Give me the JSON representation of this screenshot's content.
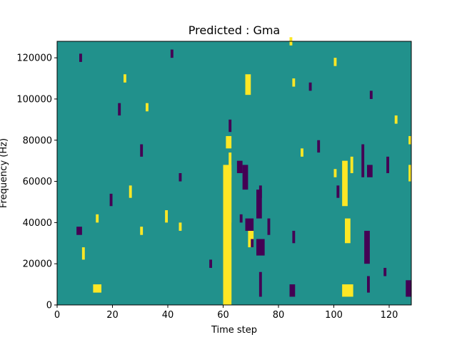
{
  "chart_data": {
    "type": "heatmap",
    "title": "Predicted : Gma",
    "xlabel": "Time step",
    "ylabel": "Frequency (Hz)",
    "xlim": [
      0,
      128
    ],
    "ylim": [
      0,
      128000
    ],
    "x_ticks": [
      0,
      20,
      40,
      60,
      80,
      100,
      120
    ],
    "x_tick_labels": [
      "0",
      "20",
      "40",
      "60",
      "80",
      "100",
      "120"
    ],
    "y_ticks": [
      0,
      20000,
      40000,
      60000,
      80000,
      100000,
      120000
    ],
    "y_tick_labels": [
      "0",
      "20000",
      "40000",
      "60000",
      "80000",
      "100000",
      "120000"
    ],
    "colors": {
      "background_value": "#21918c",
      "low_value": "#440154",
      "high_value": "#fde725"
    },
    "value_levels": [
      -1,
      0,
      1
    ],
    "grid": false,
    "cells": [
      [
        60,
        0,
        3,
        68000,
        1
      ],
      [
        60,
        40000,
        3,
        25000,
        1
      ],
      [
        60,
        2000,
        3,
        25000,
        1
      ],
      [
        61,
        76000,
        2,
        6000,
        1
      ],
      [
        62,
        62000,
        1,
        12000,
        1
      ],
      [
        68,
        102000,
        2,
        10000,
        1
      ],
      [
        69,
        28000,
        2,
        8000,
        1
      ],
      [
        103,
        4000,
        4,
        6000,
        1
      ],
      [
        103,
        48000,
        2,
        22000,
        1
      ],
      [
        104,
        30000,
        2,
        12000,
        1
      ],
      [
        13,
        6000,
        3,
        4000,
        1
      ],
      [
        127,
        60000,
        1,
        8000,
        1
      ],
      [
        127,
        78000,
        1,
        4000,
        1
      ],
      [
        14,
        40000,
        1,
        4000,
        1
      ],
      [
        30,
        34000,
        1,
        4000,
        1
      ],
      [
        26,
        52000,
        1,
        6000,
        1
      ],
      [
        39,
        40000,
        1,
        6000,
        1
      ],
      [
        9,
        22000,
        1,
        6000,
        1
      ],
      [
        44,
        36000,
        1,
        4000,
        1
      ],
      [
        100,
        62000,
        1,
        4000,
        1
      ],
      [
        106,
        64000,
        1,
        8000,
        1
      ],
      [
        122,
        88000,
        1,
        4000,
        1
      ],
      [
        88,
        72000,
        1,
        4000,
        1
      ],
      [
        84,
        126000,
        1,
        4000,
        1
      ],
      [
        32,
        94000,
        1,
        4000,
        1
      ],
      [
        24,
        108000,
        1,
        4000,
        1
      ],
      [
        85,
        106000,
        1,
        4000,
        1
      ],
      [
        100,
        116000,
        1,
        4000,
        1
      ],
      [
        68,
        36000,
        3,
        6000,
        -1
      ],
      [
        70,
        28000,
        1,
        4000,
        -1
      ],
      [
        72,
        42000,
        2,
        14000,
        -1
      ],
      [
        72,
        24000,
        3,
        8000,
        -1
      ],
      [
        67,
        56000,
        2,
        12000,
        -1
      ],
      [
        73,
        52000,
        1,
        6000,
        -1
      ],
      [
        84,
        4000,
        2,
        6000,
        -1
      ],
      [
        110,
        62000,
        1,
        16000,
        -1
      ],
      [
        112,
        62000,
        2,
        6000,
        -1
      ],
      [
        111,
        20000,
        2,
        16000,
        -1
      ],
      [
        112,
        6000,
        1,
        8000,
        -1
      ],
      [
        73,
        4000,
        1,
        12000,
        -1
      ],
      [
        7,
        34000,
        2,
        4000,
        -1
      ],
      [
        94,
        74000,
        1,
        6000,
        -1
      ],
      [
        62,
        84000,
        1,
        6000,
        -1
      ],
      [
        76,
        34000,
        1,
        8000,
        -1
      ],
      [
        65,
        64000,
        2,
        6000,
        -1
      ],
      [
        126,
        4000,
        2,
        8000,
        -1
      ],
      [
        119,
        64000,
        1,
        8000,
        -1
      ],
      [
        30,
        72000,
        1,
        6000,
        -1
      ],
      [
        85,
        30000,
        1,
        6000,
        -1
      ],
      [
        66,
        40000,
        1,
        4000,
        -1
      ],
      [
        91,
        104000,
        1,
        4000,
        -1
      ],
      [
        101,
        52000,
        1,
        6000,
        -1
      ],
      [
        41,
        120000,
        1,
        4000,
        -1
      ],
      [
        113,
        100000,
        1,
        4000,
        -1
      ],
      [
        8,
        118000,
        1,
        4000,
        -1
      ],
      [
        19,
        48000,
        1,
        6000,
        -1
      ],
      [
        22,
        92000,
        1,
        6000,
        -1
      ],
      [
        44,
        60000,
        1,
        4000,
        -1
      ],
      [
        55,
        18000,
        1,
        4000,
        -1
      ],
      [
        118,
        14000,
        1,
        4000,
        -1
      ]
    ]
  }
}
